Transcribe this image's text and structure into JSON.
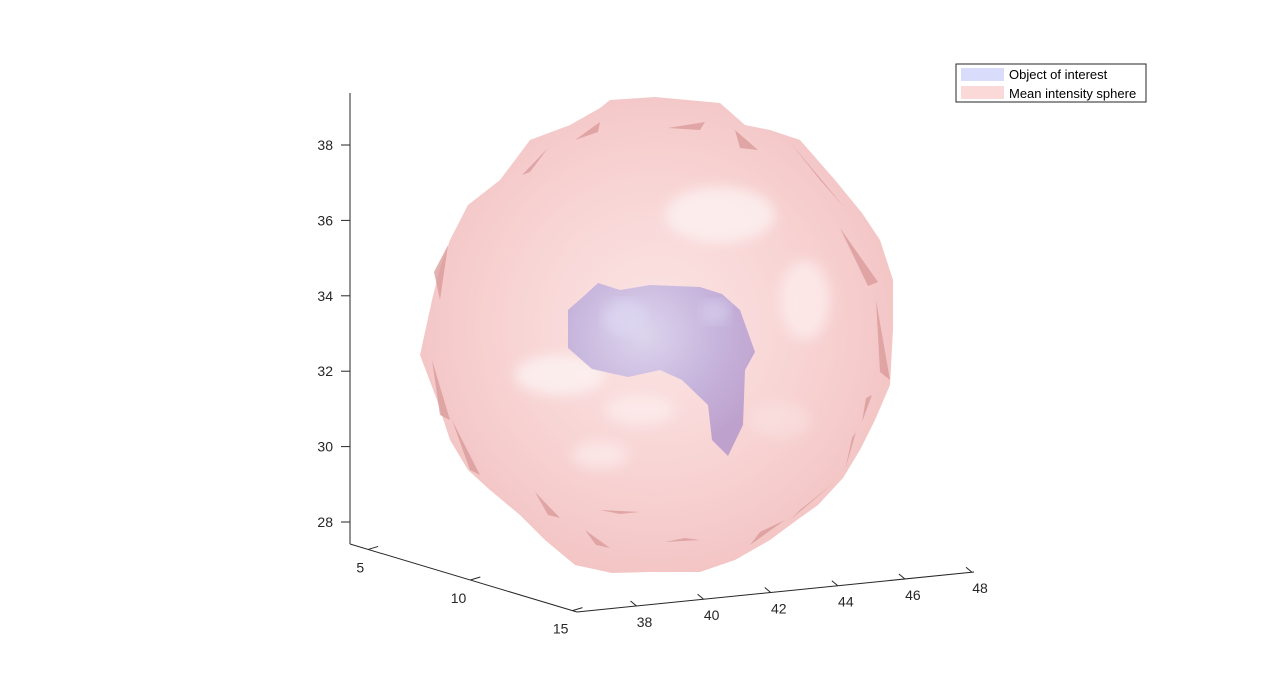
{
  "chart_data": {
    "type": "3d-surface",
    "title": "",
    "xlabel": "",
    "ylabel": "",
    "zlabel": "",
    "axes": {
      "x": {
        "ticks": [
          38,
          40,
          42,
          44,
          46,
          48
        ]
      },
      "y": {
        "ticks": [
          5,
          10,
          15
        ]
      },
      "z": {
        "ticks": [
          28,
          30,
          32,
          34,
          36,
          38
        ]
      }
    },
    "grid": false,
    "legend": {
      "placement": "top-right",
      "entries": [
        {
          "name": "Object of interest",
          "color": "#d9dcfb"
        },
        {
          "name": "Mean intensity sphere",
          "color": "#fcd9d9"
        }
      ]
    },
    "series": [
      {
        "name": "Object of interest",
        "shape": "irregular blob",
        "color": "#b8a6d6",
        "opacity": 0.85
      },
      {
        "name": "Mean intensity sphere",
        "shape": "sphere",
        "color": "#f7c0c0",
        "opacity": 0.6
      }
    ]
  }
}
